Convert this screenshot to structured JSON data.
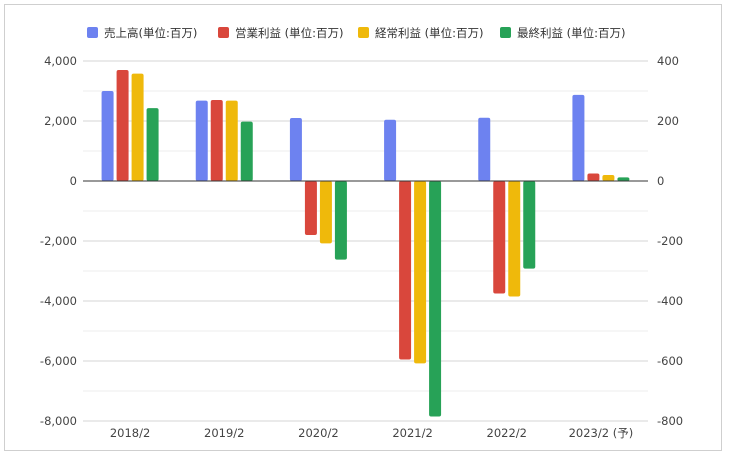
{
  "chart_data": {
    "type": "bar",
    "categories": [
      "2018/2",
      "2019/2",
      "2020/2",
      "2021/2",
      "2022/2",
      "2023/2 (予)"
    ],
    "series": [
      {
        "name": "売上高(単位:百万)",
        "axis": "left",
        "color": "#6d82f0",
        "values": [
          3000,
          2680,
          2100,
          2040,
          2110,
          2870
        ]
      },
      {
        "name": "営業利益 (単位:百万)",
        "axis": "right",
        "color": "#d9473c",
        "values": [
          370,
          270,
          -180,
          -595,
          -375,
          25
        ]
      },
      {
        "name": "経常利益 (単位:百万)",
        "axis": "right",
        "color": "#efb90b",
        "values": [
          358,
          268,
          -208,
          -608,
          -385,
          20
        ]
      },
      {
        "name": "最終利益 (単位:百万)",
        "axis": "right",
        "color": "#27a257",
        "values": [
          243,
          198,
          -262,
          -785,
          -292,
          12
        ]
      }
    ],
    "y_left": {
      "ticks": [
        4000,
        2000,
        0,
        -2000,
        -4000,
        -6000,
        -8000
      ],
      "tick_labels": [
        "4,000",
        "2,000",
        "0",
        "-2,000",
        "-4,000",
        "-6,000",
        "-8,000"
      ],
      "ylim": [
        -8000,
        4000
      ]
    },
    "y_right": {
      "ticks": [
        400,
        200,
        0,
        -200,
        -400,
        -600,
        -800
      ],
      "tick_labels": [
        "400",
        "200",
        "0",
        "-200",
        "-400",
        "-600",
        "-800"
      ],
      "ylim": [
        -800,
        400
      ]
    },
    "grid": true,
    "legend_position": "top"
  }
}
